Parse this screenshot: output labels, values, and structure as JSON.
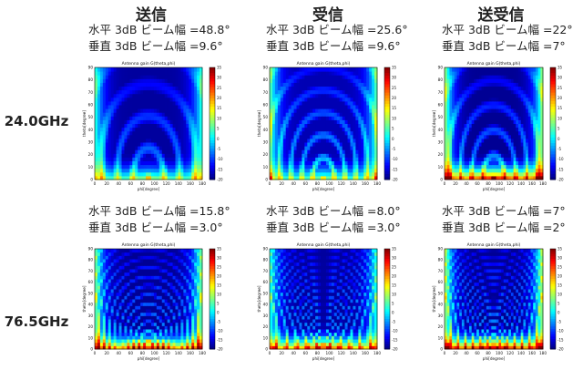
{
  "columns": [
    "送信",
    "受信",
    "送受信"
  ],
  "rows": [
    "24.0GHz",
    "76.5GHz"
  ],
  "beams": [
    [
      [
        "水平 3dB ビーム幅 =48.8°",
        "垂直 3dB ビーム幅 =9.6°"
      ],
      [
        "水平 3dB ビーム幅 =25.6°",
        "垂直 3dB ビーム幅 =9.6°"
      ],
      [
        "水平 3dB ビーム幅 =22°",
        "垂直 3dB ビーム幅 =7°"
      ]
    ],
    [
      [
        "水平 3dB ビーム幅 =15.8°",
        "垂直 3dB ビーム幅 =3.0°"
      ],
      [
        "水平 3dB ビーム幅 =8.0°",
        "垂直 3dB ビーム幅 =3.0°"
      ],
      [
        "水平 3dB ビーム幅 =7°",
        "垂直 3dB ビーム幅 =2°"
      ]
    ]
  ],
  "chart_data": [
    {
      "type": "heatmap",
      "title": "Antenna gain G(theta,phi)",
      "xlabel": "phi[degree]",
      "ylabel": "theta[degree]",
      "xlim": [
        0,
        180
      ],
      "ylim": [
        0,
        90
      ],
      "xticks": [
        0,
        20,
        40,
        60,
        80,
        100,
        120,
        140,
        160,
        180
      ],
      "yticks": [
        0,
        10,
        20,
        30,
        40,
        50,
        60,
        70,
        80,
        90
      ],
      "zlim": [
        -20,
        35
      ],
      "cticks": [
        35,
        30,
        25,
        20,
        15,
        10,
        5,
        0,
        -5,
        -10,
        -15,
        -20
      ],
      "band": "24.0GHz",
      "mode": "送信"
    },
    {
      "type": "heatmap",
      "title": "Antenna gain G(theta,phi)",
      "xlabel": "phi[degree]",
      "ylabel": "theta[degree]",
      "xlim": [
        0,
        180
      ],
      "ylim": [
        0,
        90
      ],
      "xticks": [
        0,
        20,
        40,
        60,
        80,
        100,
        120,
        140,
        160,
        180
      ],
      "yticks": [
        0,
        10,
        20,
        30,
        40,
        50,
        60,
        70,
        80,
        90
      ],
      "zlim": [
        -20,
        35
      ],
      "cticks": [
        35,
        30,
        25,
        20,
        15,
        10,
        5,
        0,
        -5,
        -10,
        -15,
        -20
      ],
      "band": "24.0GHz",
      "mode": "受信"
    },
    {
      "type": "heatmap",
      "title": "Antenna gain G(theta,phi)",
      "xlabel": "phi[degree]",
      "ylabel": "theta[degree]",
      "xlim": [
        0,
        180
      ],
      "ylim": [
        0,
        90
      ],
      "xticks": [
        0,
        20,
        40,
        60,
        80,
        100,
        120,
        140,
        160,
        180
      ],
      "yticks": [
        0,
        10,
        20,
        30,
        40,
        50,
        60,
        70,
        80,
        90
      ],
      "zlim": [
        -20,
        35
      ],
      "cticks": [
        35,
        30,
        25,
        20,
        15,
        10,
        5,
        0,
        -5,
        -10,
        -15,
        -20
      ],
      "band": "24.0GHz",
      "mode": "送受信"
    },
    {
      "type": "heatmap",
      "title": "Antenna gain G(theta,phi)",
      "xlabel": "phi[degree]",
      "ylabel": "theta[degree]",
      "xlim": [
        0,
        180
      ],
      "ylim": [
        0,
        90
      ],
      "xticks": [
        0,
        20,
        40,
        60,
        80,
        100,
        120,
        140,
        160,
        180
      ],
      "yticks": [
        0,
        10,
        20,
        30,
        40,
        50,
        60,
        70,
        80,
        90
      ],
      "zlim": [
        -20,
        35
      ],
      "cticks": [
        35,
        30,
        25,
        20,
        15,
        10,
        5,
        0,
        -5,
        -10,
        -15,
        -20
      ],
      "band": "76.5GHz",
      "mode": "送信"
    },
    {
      "type": "heatmap",
      "title": "Antenna gain G(theta,phi)",
      "xlabel": "phi[degree]",
      "ylabel": "theta[degree]",
      "xlim": [
        0,
        180
      ],
      "ylim": [
        0,
        90
      ],
      "xticks": [
        0,
        20,
        40,
        60,
        80,
        100,
        120,
        140,
        160,
        180
      ],
      "yticks": [
        0,
        10,
        20,
        30,
        40,
        50,
        60,
        70,
        80,
        90
      ],
      "zlim": [
        -20,
        35
      ],
      "cticks": [
        35,
        30,
        25,
        20,
        15,
        10,
        5,
        0,
        -5,
        -10,
        -15,
        -20
      ],
      "band": "76.5GHz",
      "mode": "受信"
    },
    {
      "type": "heatmap",
      "title": "Antenna gain G(theta,phi)",
      "xlabel": "phi[degree]",
      "ylabel": "theta[degree]",
      "xlim": [
        0,
        180
      ],
      "ylim": [
        0,
        90
      ],
      "xticks": [
        0,
        20,
        40,
        60,
        80,
        100,
        120,
        140,
        160,
        180
      ],
      "yticks": [
        0,
        10,
        20,
        30,
        40,
        50,
        60,
        70,
        80,
        90
      ],
      "zlim": [
        -20,
        35
      ],
      "cticks": [
        35,
        30,
        25,
        20,
        15,
        10,
        5,
        0,
        -5,
        -10,
        -15,
        -20
      ],
      "band": "76.5GHz",
      "mode": "送受信"
    }
  ]
}
